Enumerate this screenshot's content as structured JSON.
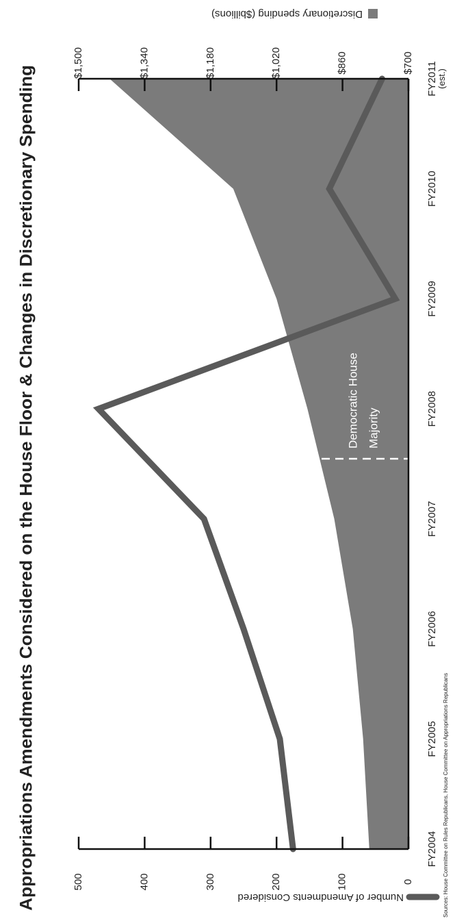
{
  "chart_data": {
    "type": "line",
    "title": "Appropriations Amendments Considered on the House Floor & Changes in Discretionary Spending",
    "categories": [
      [
        "FY2004"
      ],
      [
        "FY2005"
      ],
      [
        "FY2006"
      ],
      [
        "FY2007"
      ],
      [
        "FY2008"
      ],
      [
        "FY2009"
      ],
      [
        "FY2010"
      ],
      [
        "FY2011",
        "(est.)"
      ]
    ],
    "series": [
      {
        "name": "Number of Amendments Considered",
        "type": "line",
        "color": "#5a5a5a",
        "values": [
          175,
          195,
          250,
          310,
          470,
          20,
          120,
          40
        ]
      },
      {
        "name": "Discretionary spending ($billions)",
        "type": "area",
        "axis": "y2",
        "color": "#7b7b7b",
        "values": [
          795,
          810,
          835,
          880,
          945,
          1020,
          1125,
          1425
        ]
      }
    ],
    "ylim": [
      0,
      500
    ],
    "yticks": [
      0,
      100,
      200,
      300,
      400,
      500
    ],
    "y2lim": [
      700,
      1500
    ],
    "y2ticks": [
      {
        "value": 700,
        "label": "$700"
      },
      {
        "value": 860,
        "label": "$860"
      },
      {
        "value": 1020,
        "label": "$1,020"
      },
      {
        "value": 1180,
        "label": "$1,180"
      },
      {
        "value": 1340,
        "label": "$1,340"
      },
      {
        "value": 1500,
        "label": "$1,500"
      }
    ],
    "annotation": [
      "Democratic House",
      "Majority"
    ],
    "source": "Sources: House Committee on Rules Republicans, House Committee on Appropriations Republicans"
  }
}
